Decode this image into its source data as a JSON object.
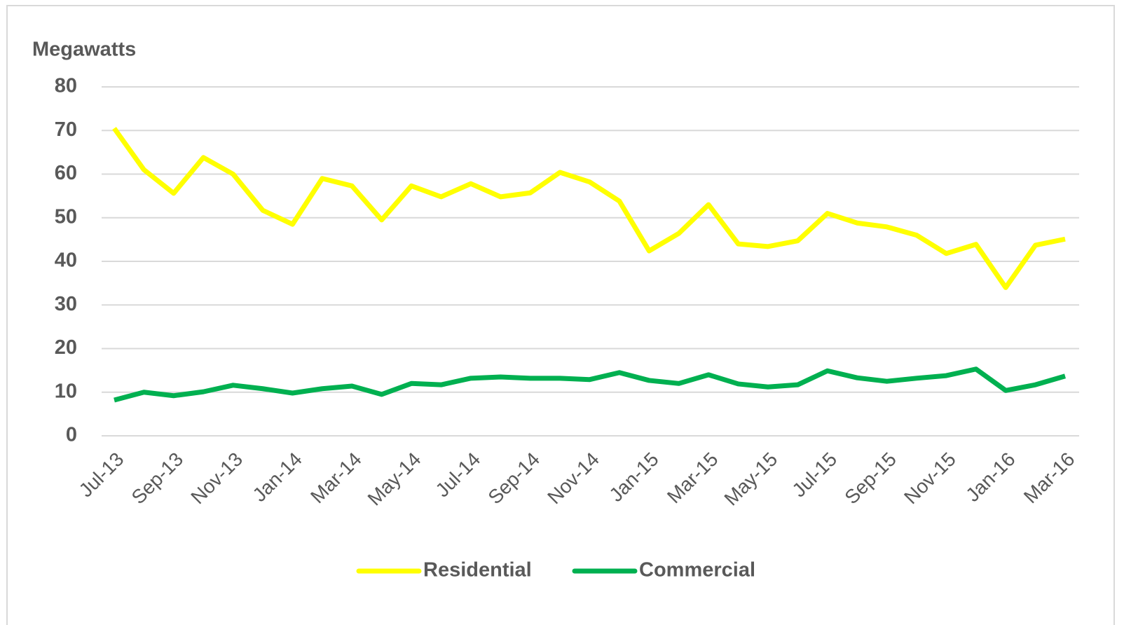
{
  "chart_data": {
    "type": "line",
    "y_label": "Megawatts",
    "categories": [
      "Jul-13",
      null,
      "Sep-13",
      null,
      "Nov-13",
      null,
      "Jan-14",
      null,
      "Mar-14",
      null,
      "May-14",
      null,
      "Jul-14",
      null,
      "Sep-14",
      null,
      "Nov-14",
      null,
      "Jan-15",
      null,
      "Mar-15",
      null,
      "May-15",
      null,
      "Jul-15",
      null,
      "Sep-15",
      null,
      "Nov-15",
      null,
      "Jan-16",
      null,
      "Mar-16"
    ],
    "series": [
      {
        "name": "Residential",
        "color": "#ffff00",
        "values": [
          70.5,
          61,
          55.6,
          63.8,
          60,
          51.7,
          48.5,
          59,
          57.3,
          49.5,
          57.3,
          54.8,
          57.8,
          54.8,
          55.7,
          60.4,
          58.2,
          53.8,
          42.4,
          46.4,
          53,
          44,
          43.4,
          44.7,
          51,
          48.8,
          47.9,
          46,
          41.8,
          43.9,
          34,
          43.7,
          45.1
        ]
      },
      {
        "name": "Commercial",
        "color": "#00b050",
        "values": [
          8.2,
          10,
          9.2,
          10.1,
          11.6,
          10.8,
          9.8,
          10.8,
          11.4,
          9.5,
          12,
          11.7,
          13.2,
          13.5,
          13.2,
          13.2,
          12.9,
          14.5,
          12.7,
          12,
          14,
          11.9,
          11.2,
          11.7,
          14.9,
          13.3,
          12.5,
          13.2,
          13.8,
          15.3,
          10.4,
          11.7,
          13.7
        ]
      }
    ],
    "ylim": [
      0,
      80
    ],
    "yticks": [
      0,
      10,
      20,
      30,
      40,
      50,
      60,
      70,
      80
    ],
    "grid": true,
    "legend": "bottom"
  }
}
